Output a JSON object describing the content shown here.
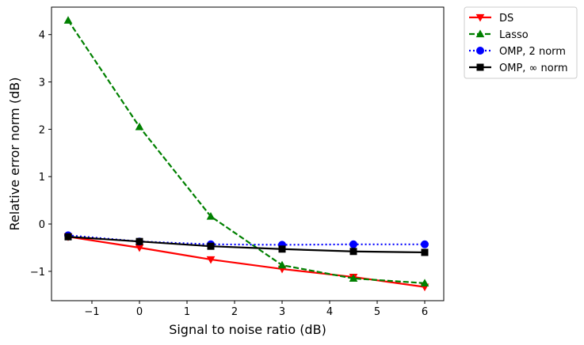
{
  "chart_data": {
    "type": "line",
    "xlabel": "Signal to noise ratio (dB)",
    "ylabel": "Relative error norm (dB)",
    "xlim": [
      -1.85,
      6.4
    ],
    "ylim": [
      -1.62,
      4.58
    ],
    "xticks": [
      -1,
      0,
      1,
      2,
      3,
      4,
      5,
      6
    ],
    "xtick_labels": [
      "−1",
      "0",
      "1",
      "2",
      "3",
      "4",
      "5",
      "6"
    ],
    "yticks": [
      -1,
      0,
      1,
      2,
      3,
      4
    ],
    "ytick_labels": [
      "−1",
      "0",
      "1",
      "2",
      "3",
      "4"
    ],
    "grid": false,
    "legend_position": "outside-top-right",
    "x": [
      -1.5,
      0,
      1.5,
      3,
      4.5,
      6
    ],
    "series": [
      {
        "name": "DS",
        "values": [
          -0.27,
          -0.5,
          -0.75,
          -0.95,
          -1.12,
          -1.33
        ],
        "color": "#ff0000",
        "linestyle": "solid",
        "marker": "triangle-down"
      },
      {
        "name": "Lasso",
        "values": [
          4.3,
          2.05,
          0.16,
          -0.87,
          -1.15,
          -1.25
        ],
        "color": "#008000",
        "linestyle": "dashed",
        "marker": "triangle-up"
      },
      {
        "name": "OMP, 2 norm",
        "values": [
          -0.24,
          -0.37,
          -0.43,
          -0.44,
          -0.43,
          -0.43
        ],
        "color": "#0000ff",
        "linestyle": "dotted",
        "marker": "circle"
      },
      {
        "name": "OMP, ∞ norm",
        "values": [
          -0.27,
          -0.37,
          -0.47,
          -0.53,
          -0.58,
          -0.6
        ],
        "color": "#000000",
        "linestyle": "solid",
        "marker": "square"
      }
    ]
  }
}
